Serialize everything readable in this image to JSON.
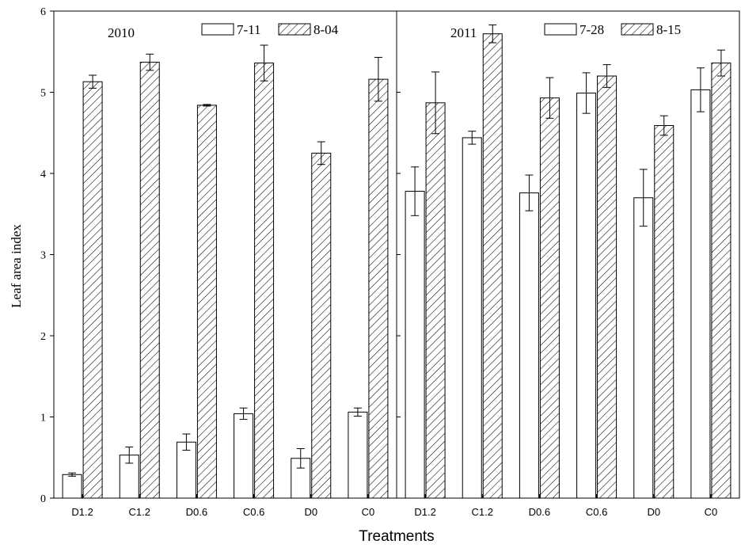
{
  "chart_data": [
    {
      "type": "bar",
      "panel_label": "2010",
      "categories": [
        "D1.2",
        "C1.2",
        "D0.6",
        "C0.6",
        "D0",
        "C0"
      ],
      "series": [
        {
          "name": "7-11",
          "fill": "plain",
          "values": [
            0.29,
            0.53,
            0.69,
            1.04,
            0.49,
            1.06
          ],
          "errors": [
            0.02,
            0.1,
            0.1,
            0.07,
            0.12,
            0.05
          ]
        },
        {
          "name": "8-04",
          "fill": "hatched",
          "values": [
            5.13,
            5.37,
            4.84,
            5.36,
            4.25,
            5.16
          ],
          "errors": [
            0.08,
            0.1,
            0.01,
            0.22,
            0.14,
            0.27
          ]
        }
      ],
      "legend": "top",
      "ylim": [
        0,
        6
      ]
    },
    {
      "type": "bar",
      "panel_label": "2011",
      "categories": [
        "D1.2",
        "C1.2",
        "D0.6",
        "C0.6",
        "D0",
        "C0"
      ],
      "series": [
        {
          "name": "7-28",
          "fill": "plain",
          "values": [
            3.78,
            4.44,
            3.76,
            4.99,
            3.7,
            5.03
          ],
          "errors": [
            0.3,
            0.08,
            0.22,
            0.25,
            0.35,
            0.27
          ]
        },
        {
          "name": "8-15",
          "fill": "hatched",
          "values": [
            4.87,
            5.72,
            4.93,
            5.2,
            4.59,
            5.36
          ],
          "errors": [
            0.38,
            0.11,
            0.25,
            0.14,
            0.12,
            0.16
          ]
        }
      ],
      "legend": "top",
      "ylim": [
        0,
        6
      ]
    }
  ],
  "axes": {
    "ylabel": "Leaf area index",
    "xlabel": "Treatments",
    "yticks": [
      "0",
      "1",
      "2",
      "3",
      "4",
      "5",
      "6"
    ]
  },
  "colors": {
    "bar_fill": "#ffffff",
    "stroke": "#000000"
  }
}
